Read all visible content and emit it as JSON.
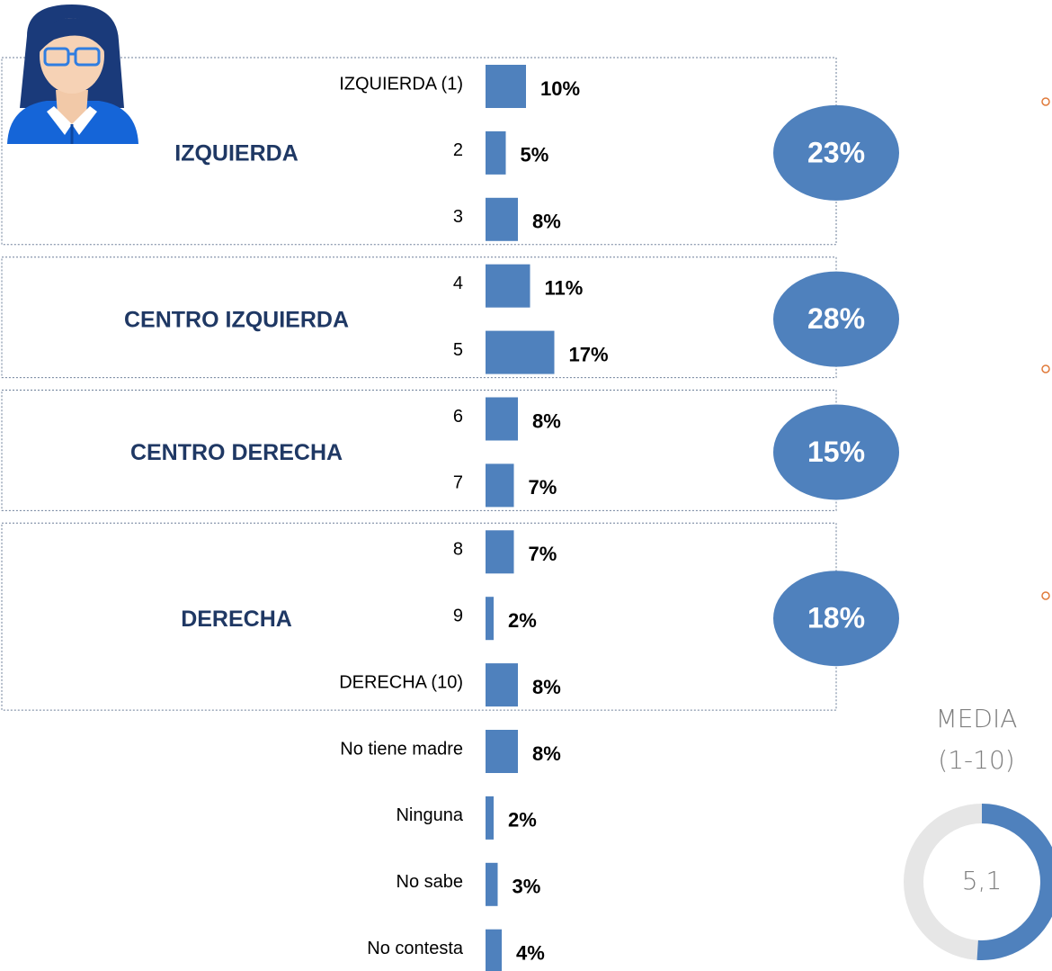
{
  "chart_data": {
    "type": "bar",
    "color": "#4f81bd",
    "categories": [
      "IZQUIERDA (1)",
      "2",
      "3",
      "4",
      "5",
      "6",
      "7",
      "8",
      "9",
      "DERECHA (10)",
      "No tiene madre",
      "Ninguna",
      "No sabe",
      "No contesta"
    ],
    "values": [
      10,
      5,
      8,
      11,
      17,
      8,
      7,
      7,
      2,
      8,
      8,
      2,
      3,
      4
    ],
    "value_labels": [
      "10%",
      "5%",
      "8%",
      "11%",
      "17%",
      "8%",
      "7%",
      "7%",
      "2%",
      "8%",
      "8%",
      "2%",
      "3%",
      "4%"
    ],
    "groups": [
      {
        "label": "IZQUIERDA",
        "total": 23,
        "total_label": "23%"
      },
      {
        "label": "CENTRO IZQUIERDA",
        "total": 28,
        "total_label": "28%"
      },
      {
        "label": "CENTRO DERECHA",
        "total": 15,
        "total_label": "15%"
      },
      {
        "label": "DERECHA",
        "total": 18,
        "total_label": "18%"
      }
    ],
    "media": {
      "title": "MEDIA",
      "subtitle": "(1-10)",
      "value": 5.1,
      "label": "5,1",
      "range": [
        0,
        10
      ],
      "color": "#4f81bd"
    }
  }
}
